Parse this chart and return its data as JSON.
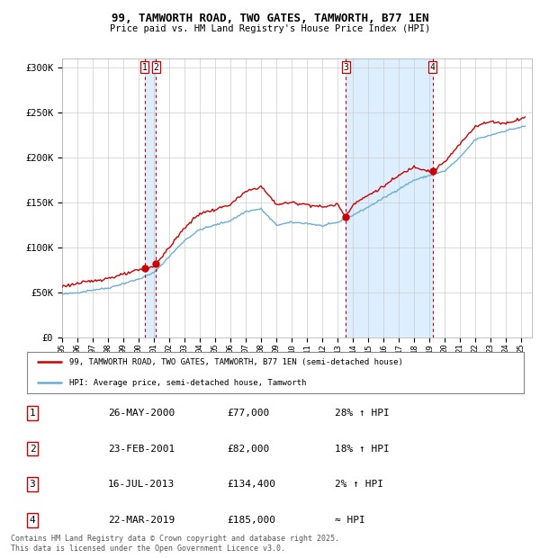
{
  "title": "99, TAMWORTH ROAD, TWO GATES, TAMWORTH, B77 1EN",
  "subtitle": "Price paid vs. HM Land Registry's House Price Index (HPI)",
  "legend_line1": "99, TAMWORTH ROAD, TWO GATES, TAMWORTH, B77 1EN (semi-detached house)",
  "legend_line2": "HPI: Average price, semi-detached house, Tamworth",
  "footer1": "Contains HM Land Registry data © Crown copyright and database right 2025.",
  "footer2": "This data is licensed under the Open Government Licence v3.0.",
  "transactions": [
    {
      "num": 1,
      "date": "26-MAY-2000",
      "date_val": 2000.4,
      "price": 77000,
      "label": "28% ↑ HPI"
    },
    {
      "num": 2,
      "date": "23-FEB-2001",
      "date_val": 2001.14,
      "price": 82000,
      "label": "18% ↑ HPI"
    },
    {
      "num": 3,
      "date": "16-JUL-2013",
      "date_val": 2013.54,
      "price": 134400,
      "label": "2% ↑ HPI"
    },
    {
      "num": 4,
      "date": "22-MAR-2019",
      "date_val": 2019.22,
      "price": 185000,
      "label": "≈ HPI"
    }
  ],
  "hpi_color": "#6aaed6",
  "price_color": "#cc0000",
  "marker_color": "#cc0000",
  "vline_color": "#cc0000",
  "shade_color": "#ddeeff",
  "background_color": "#ffffff",
  "grid_color": "#cccccc",
  "ylim": [
    0,
    310000
  ],
  "xlim_start": 1995.0,
  "xlim_end": 2025.7,
  "yticks": [
    0,
    50000,
    100000,
    150000,
    200000,
    250000,
    300000
  ],
  "ytick_labels": [
    "£0",
    "£50K",
    "£100K",
    "£150K",
    "£200K",
    "£250K",
    "£300K"
  ],
  "hpi_key_points": {
    "1995.0": 48000,
    "1996.0": 50000,
    "1997.0": 53000,
    "1998.0": 55000,
    "1999.0": 60000,
    "2000.0": 65000,
    "2001.0": 72000,
    "2002.0": 90000,
    "2003.0": 108000,
    "2004.0": 120000,
    "2005.0": 125000,
    "2006.0": 130000,
    "2007.0": 140000,
    "2008.0": 143000,
    "2009.0": 125000,
    "2010.0": 128000,
    "2011.0": 127000,
    "2012.0": 124000,
    "2013.0": 128000,
    "2014.0": 136000,
    "2015.0": 145000,
    "2016.0": 155000,
    "2017.0": 165000,
    "2018.0": 175000,
    "2019.0": 180000,
    "2020.0": 185000,
    "2021.0": 200000,
    "2022.0": 220000,
    "2023.0": 225000,
    "2024.0": 230000,
    "2025.3": 235000
  },
  "price_key_points": {
    "1995.0": 57000,
    "1996.0": 60000,
    "1997.0": 63000,
    "1998.0": 66000,
    "1999.0": 70000,
    "2000.0": 75000,
    "2000.4": 77000,
    "2001.0": 79000,
    "2001.14": 82000,
    "2002.0": 100000,
    "2003.0": 122000,
    "2004.0": 138000,
    "2005.0": 142000,
    "2006.0": 148000,
    "2007.0": 162000,
    "2008.0": 168000,
    "2009.0": 148000,
    "2010.0": 150000,
    "2011.0": 148000,
    "2012.0": 145000,
    "2013.0": 148000,
    "2013.54": 134400,
    "2014.0": 148000,
    "2015.0": 158000,
    "2016.0": 168000,
    "2017.0": 180000,
    "2018.0": 190000,
    "2019.0": 185000,
    "2019.22": 185000,
    "2020.0": 195000,
    "2021.0": 215000,
    "2022.0": 235000,
    "2023.0": 240000,
    "2024.0": 238000,
    "2025.3": 245000
  }
}
